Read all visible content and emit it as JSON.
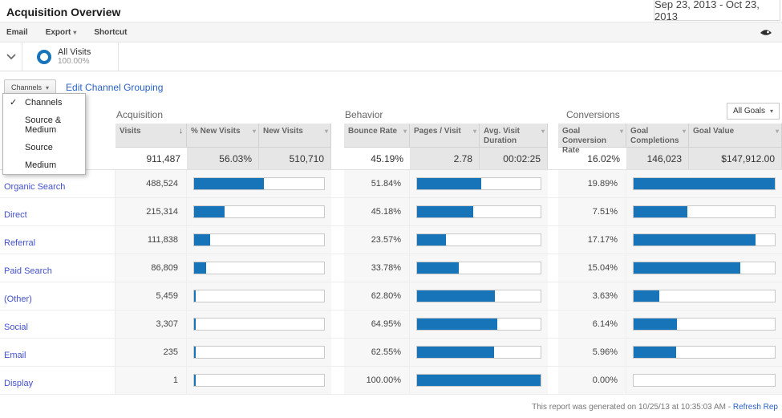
{
  "header": {
    "title": "Acquisition Overview",
    "date_range": "Sep 23, 2013 - Oct 23, 2013"
  },
  "toolbar": {
    "email": "Email",
    "export": "Export",
    "shortcut": "Shortcut"
  },
  "segment": {
    "name": "All Visits",
    "percent": "100.00%"
  },
  "controls": {
    "grouping_button": "Channels",
    "edit_link": "Edit Channel Grouping",
    "goals_selector": "All Goals",
    "menu": {
      "items": [
        {
          "label": "Channels",
          "checked": true
        },
        {
          "label": "Source & Medium",
          "checked": false
        },
        {
          "label": "Source",
          "checked": false
        },
        {
          "label": "Medium",
          "checked": false
        }
      ]
    }
  },
  "sections": {
    "acquisition": "Acquisition",
    "behavior": "Behavior",
    "conversions": "Conversions"
  },
  "columns": [
    "Visits",
    "% New Visits",
    "New Visits",
    "Bounce Rate",
    "Pages / Visit",
    "Avg. Visit Duration",
    "Goal Conversion Rate",
    "Goal Completions",
    "Goal Value"
  ],
  "summary": {
    "visits": "911,487",
    "pct_new_visits": "56.03%",
    "new_visits": "510,710",
    "bounce_rate": "45.19%",
    "pages_visit": "2.78",
    "avg_duration": "00:02:25",
    "goal_conv_rate": "16.02%",
    "goal_completions": "146,023",
    "goal_value": "$147,912.00"
  },
  "rows": [
    {
      "channel": "Organic Search",
      "visits": "488,524",
      "visits_fill": 53.6,
      "bounce_rate": "51.84%",
      "bounce_fill": 51.8,
      "conv_rate": "19.89%",
      "conv_fill": 100
    },
    {
      "channel": "Direct",
      "visits": "215,314",
      "visits_fill": 23.6,
      "bounce_rate": "45.18%",
      "bounce_fill": 45.2,
      "conv_rate": "7.51%",
      "conv_fill": 37.8
    },
    {
      "channel": "Referral",
      "visits": "111,838",
      "visits_fill": 12.3,
      "bounce_rate": "23.57%",
      "bounce_fill": 23.6,
      "conv_rate": "17.17%",
      "conv_fill": 86.3
    },
    {
      "channel": "Paid Search",
      "visits": "86,809",
      "visits_fill": 9.5,
      "bounce_rate": "33.78%",
      "bounce_fill": 33.8,
      "conv_rate": "15.04%",
      "conv_fill": 75.6
    },
    {
      "channel": "(Other)",
      "visits": "5,459",
      "visits_fill": 0.6,
      "bounce_rate": "62.80%",
      "bounce_fill": 62.8,
      "conv_rate": "3.63%",
      "conv_fill": 18.3
    },
    {
      "channel": "Social",
      "visits": "3,307",
      "visits_fill": 0.4,
      "bounce_rate": "64.95%",
      "bounce_fill": 65.0,
      "conv_rate": "6.14%",
      "conv_fill": 30.9
    },
    {
      "channel": "Email",
      "visits": "235",
      "visits_fill": 0.1,
      "bounce_rate": "62.55%",
      "bounce_fill": 62.6,
      "conv_rate": "5.96%",
      "conv_fill": 30.0
    },
    {
      "channel": "Display",
      "visits": "1",
      "visits_fill": 0.1,
      "bounce_rate": "100.00%",
      "bounce_fill": 100,
      "conv_rate": "0.00%",
      "conv_fill": 0
    }
  ],
  "footer": {
    "generated_text": "This report was generated on 10/25/13 at 10:35:03 AM -",
    "refresh_link": "Refresh Rep"
  },
  "colors": {
    "bar_blue": "#1774b8",
    "channel_link": "#4250cd",
    "action_link": "#2a62c9"
  }
}
